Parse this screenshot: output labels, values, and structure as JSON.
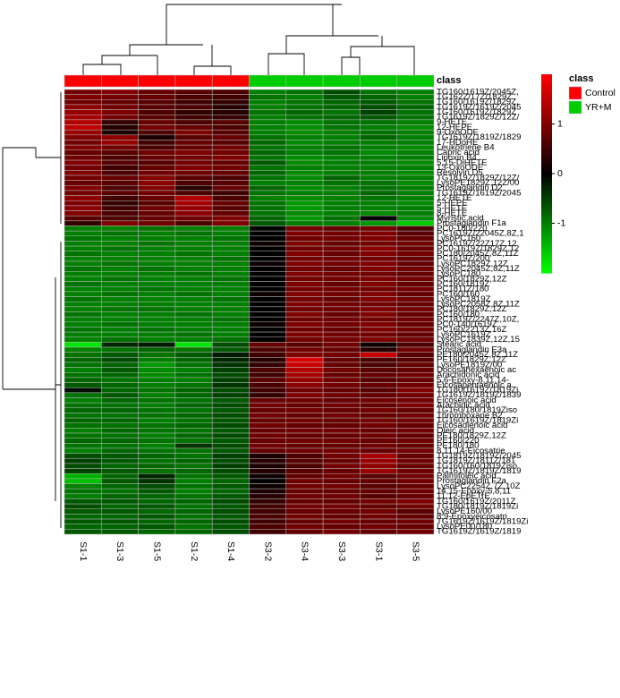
{
  "chart_data": {
    "type": "heatmap",
    "class_header": "class",
    "legend_title": "class",
    "classes": [
      {
        "name": "Control",
        "color": "#ff0000"
      },
      {
        "name": "YR+M",
        "color": "#00cc00"
      }
    ],
    "columns": [
      "S1-1",
      "S1-3",
      "S1-5",
      "S1-2",
      "S1-4",
      "S3-2",
      "S3-4",
      "S3-3",
      "S3-1",
      "S3-5"
    ],
    "column_classes": [
      0,
      0,
      0,
      0,
      0,
      1,
      1,
      1,
      1,
      1
    ],
    "clim": [
      -2,
      2
    ],
    "cticks": [
      -1,
      0,
      1
    ],
    "color_low": "#00ff00",
    "color_mid": "#000000",
    "color_high": "#ff0000",
    "rows": [
      "TG160/1619Z/2045Z,",
      "TG162Z/17Z/1829Z",
      "TG160/1619Z/1829Z,",
      "TG1619Z/1619Z/2045",
      "TG160/1619Z/1829Z",
      "TG1619Z/1829Z/12Z/",
      "9-HETE",
      "12-HEPE",
      "9-OxoODE",
      "TG1619Z/1819Z/1829",
      "17-HDoHE",
      "Leukotriene B4",
      "Capric acid",
      "Lipoxin B4",
      "5,15-DiHETE",
      "13-OxoODE",
      "Resolvin D5",
      "TG1819Z/1829Z/12Z/",
      "LysoPE1829Z,12Z/00",
      "Prostaglandin D2",
      "TG1619Z/1619Z/2045",
      "12-HETE",
      "5-HEPE",
      "5-HETE",
      "8-HETE",
      "Myristic acid",
      "Prostaglandin F1a",
      "PC0-180/220",
      "PC1619Z/22045Z,8Z,1",
      "LysoPC160",
      "PC1619Z/22Z17Z,12",
      "PC0-1619Z/1829Z,12",
      "PC180/2045Z,8Z,11Z",
      "PC1619Z/200",
      "LysoPC1829Z,12Z",
      "LysoPC2045Z,8Z,11Z",
      "LysoPC180",
      "PC160/1829Z,12Z",
      "PC160/1819Z",
      "PC1811Z/180",
      "PC160/160",
      "LysoPC1819Z",
      "LysoPC2058Z,8Z,11Z",
      "PC180/1829Z,12Z",
      "PC160/180",
      "PC1819Z/2247Z,10Z,",
      "PC0-140/1619Z",
      "PC160/2213Z,16Z",
      "LysoPC1619Z",
      "LysoPC1839Z,12Z,15",
      "Stearic acid",
      "Prostaglandin E3a",
      "PE180/2045Z,8Z,11Z",
      "PE160/1829Z,12Z",
      "LysoPE1819Z/00",
      "Docosahexaenoic ac",
      "Arachidonic acid",
      "5,6-Epoxy-8,11,14-",
      "Eicosapentaenoic a",
      "TG180/1619Z/1819Zi",
      "TG1619Z/1819Z/1839",
      "Eicosenoic acid",
      "Arachidic acid",
      "TG160/180/1819Ziso",
      "Thromboxane B2",
      "TG160/1619Z/1819Zi",
      "Eicosadienoic acid",
      "Oleic acid",
      "PE180/1829Z,12Z",
      "PE160/220",
      "PE180/180",
      "8,11,14-Eicosatrie",
      "TG1819Z/1819Z/2045",
      "TG1819Z/1811Z/181",
      "TG160/160/1819Ziso",
      "TG1619Z/1819Z/1819",
      "Palmitoleic acid",
      "Prostaglandin F2a",
      "LysoPC2254Z,7Z,10Z",
      "14,15-Epoxy-5,8,11",
      "11,12-EpETrE",
      "TG160/1619Z/2011Z",
      "TG180/1819Z/1819Zi",
      "LysoPE160/00",
      "8,9-Epoxyeicosatri",
      "TG1619Z/1619Z/1819Zi",
      "LysoPE00/180",
      "TG1619Z/1619Z/1819"
    ],
    "values": [
      [
        0.9,
        1.0,
        0.8,
        0.7,
        0.6,
        -1.0,
        -0.9,
        -0.6,
        -0.9,
        -1.0
      ],
      [
        1.0,
        0.9,
        0.8,
        0.6,
        0.5,
        -0.9,
        -1.0,
        -0.7,
        -0.8,
        -1.0
      ],
      [
        0.9,
        0.8,
        0.7,
        0.5,
        0.4,
        -1.0,
        -0.9,
        -0.8,
        -0.7,
        -0.9
      ],
      [
        1.1,
        0.9,
        0.7,
        0.6,
        0.3,
        -1.0,
        -0.9,
        -0.8,
        -0.6,
        -0.8
      ],
      [
        1.2,
        1.0,
        0.6,
        0.4,
        0.3,
        -0.9,
        -0.8,
        -0.9,
        -0.5,
        -0.9
      ],
      [
        1.3,
        0.9,
        0.7,
        0.5,
        0.4,
        -1.0,
        -0.9,
        -0.8,
        -0.7,
        -0.9
      ],
      [
        1.4,
        0.4,
        0.8,
        0.6,
        0.7,
        -1.0,
        -1.1,
        -0.9,
        -0.9,
        -1.0
      ],
      [
        1.5,
        0.3,
        0.9,
        0.8,
        0.6,
        -1.0,
        -1.1,
        -0.9,
        -1.0,
        -1.1
      ],
      [
        1.2,
        0.2,
        0.6,
        1.0,
        0.7,
        -1.0,
        -1.1,
        -1.0,
        -0.9,
        -1.0
      ],
      [
        1.0,
        1.1,
        0.2,
        0.7,
        0.8,
        -0.9,
        -1.0,
        -1.0,
        -0.8,
        -1.0
      ],
      [
        0.9,
        1.2,
        0.5,
        0.8,
        0.7,
        -0.8,
        -1.1,
        -1.0,
        -1.0,
        -1.0
      ],
      [
        1.0,
        0.9,
        0.6,
        0.8,
        0.9,
        -0.9,
        -1.0,
        -0.9,
        -1.0,
        -1.1
      ],
      [
        0.8,
        0.7,
        0.9,
        1.0,
        0.9,
        -0.8,
        -1.0,
        -0.9,
        -1.1,
        -1.0
      ],
      [
        0.9,
        0.6,
        0.8,
        0.9,
        1.0,
        -0.9,
        -1.1,
        -1.0,
        -1.0,
        -1.0
      ],
      [
        1.0,
        0.7,
        0.7,
        0.9,
        0.8,
        -0.7,
        -1.1,
        -1.0,
        -1.0,
        -1.1
      ],
      [
        0.9,
        0.5,
        0.8,
        1.0,
        0.9,
        -0.9,
        -1.0,
        -1.0,
        -1.0,
        -1.0
      ],
      [
        1.0,
        0.6,
        0.9,
        0.9,
        0.8,
        -0.8,
        -1.1,
        -1.0,
        -1.0,
        -1.1
      ],
      [
        0.9,
        0.8,
        1.0,
        0.7,
        0.6,
        -0.9,
        -1.1,
        -0.8,
        -1.0,
        -1.0
      ],
      [
        0.8,
        0.7,
        1.1,
        0.6,
        0.7,
        -1.0,
        -1.0,
        -0.9,
        -0.9,
        -1.1
      ],
      [
        1.0,
        0.6,
        1.0,
        0.3,
        0.8,
        -0.8,
        -1.1,
        -1.0,
        -0.9,
        -1.0
      ],
      [
        0.9,
        0.7,
        0.9,
        0.6,
        0.5,
        -0.9,
        -1.0,
        -1.0,
        -0.8,
        -1.0
      ],
      [
        1.1,
        0.5,
        0.8,
        1.4,
        0.6,
        -1.0,
        -1.1,
        -1.0,
        -0.9,
        -1.0
      ],
      [
        1.0,
        0.4,
        0.7,
        1.3,
        0.8,
        -0.9,
        -1.2,
        -1.0,
        -1.0,
        -1.1
      ],
      [
        1.1,
        0.5,
        0.9,
        1.2,
        0.7,
        -0.9,
        -1.2,
        -1.0,
        -1.0,
        -1.0
      ],
      [
        1.0,
        0.6,
        0.8,
        1.1,
        0.8,
        -0.9,
        -1.1,
        -1.0,
        -1.1,
        -1.0
      ],
      [
        0.7,
        0.6,
        0.8,
        0.9,
        1.0,
        -0.8,
        -1.2,
        -0.9,
        0.0,
        -1.1
      ],
      [
        0.4,
        1.0,
        0.9,
        0.6,
        1.0,
        -0.7,
        -1.0,
        -1.0,
        -1.2,
        -1.6
      ],
      [
        -1.0,
        -1.0,
        -0.9,
        -1.0,
        -1.0,
        0.0,
        0.9,
        0.8,
        0.9,
        0.6
      ],
      [
        -1.0,
        -0.9,
        -1.0,
        -0.9,
        -1.0,
        0.0,
        1.0,
        0.9,
        1.0,
        0.7
      ],
      [
        -0.9,
        -1.0,
        -1.0,
        -1.0,
        -0.9,
        0.0,
        0.9,
        0.9,
        1.0,
        0.8
      ],
      [
        -1.0,
        -1.0,
        -0.9,
        -1.0,
        -1.0,
        0.1,
        1.0,
        0.8,
        0.9,
        0.9
      ],
      [
        -1.0,
        -0.9,
        -1.0,
        -1.0,
        -1.0,
        0.0,
        0.9,
        0.9,
        1.1,
        0.8
      ],
      [
        -0.9,
        -1.0,
        -1.0,
        -0.9,
        -1.0,
        0.0,
        1.0,
        0.8,
        1.0,
        0.9
      ],
      [
        -1.0,
        -1.0,
        -1.0,
        -1.0,
        -0.9,
        0.0,
        0.9,
        0.9,
        0.9,
        0.8
      ],
      [
        -1.0,
        -0.9,
        -1.0,
        -1.0,
        -1.0,
        0.1,
        1.0,
        0.9,
        1.0,
        0.8
      ],
      [
        -0.9,
        -1.0,
        -0.9,
        -1.0,
        -1.0,
        0.0,
        0.9,
        0.8,
        1.0,
        0.9
      ],
      [
        -1.0,
        -1.0,
        -1.0,
        -0.9,
        -1.0,
        0.0,
        1.0,
        0.9,
        0.9,
        0.8
      ],
      [
        -1.0,
        -0.9,
        -1.0,
        -1.0,
        -0.9,
        0.0,
        0.9,
        0.9,
        1.0,
        0.9
      ],
      [
        -0.9,
        -1.0,
        -1.0,
        -1.0,
        -1.0,
        0.0,
        1.0,
        0.8,
        1.0,
        0.8
      ],
      [
        -1.0,
        -1.0,
        -0.9,
        -1.0,
        -1.0,
        0.0,
        0.9,
        0.9,
        0.9,
        0.9
      ],
      [
        -1.0,
        -0.9,
        -1.0,
        -0.9,
        -1.0,
        0.1,
        1.0,
        0.9,
        1.0,
        0.8
      ],
      [
        -0.9,
        -1.0,
        -1.0,
        -1.0,
        -0.9,
        0.0,
        0.9,
        0.8,
        1.0,
        0.9
      ],
      [
        -1.0,
        -1.0,
        -1.0,
        -1.0,
        -1.0,
        0.0,
        1.0,
        0.9,
        0.9,
        0.8
      ],
      [
        -1.0,
        -0.9,
        -0.9,
        -1.0,
        -1.0,
        0.0,
        0.9,
        0.9,
        1.0,
        0.9
      ],
      [
        -0.9,
        -1.0,
        -1.0,
        -0.9,
        -1.0,
        0.0,
        1.0,
        0.8,
        1.0,
        0.8
      ],
      [
        -1.0,
        -1.0,
        -1.0,
        -1.0,
        -0.9,
        0.0,
        0.9,
        0.9,
        0.9,
        0.9
      ],
      [
        -1.0,
        -0.9,
        -1.0,
        -1.0,
        -1.0,
        0.1,
        1.0,
        0.9,
        1.0,
        0.8
      ],
      [
        -0.9,
        -1.0,
        -0.9,
        -1.0,
        -1.0,
        0.0,
        0.9,
        0.8,
        1.0,
        0.9
      ],
      [
        -1.0,
        -1.0,
        -1.0,
        -0.9,
        -1.0,
        0.0,
        1.0,
        0.9,
        0.9,
        0.8
      ],
      [
        -1.0,
        -0.9,
        -1.0,
        -1.0,
        -0.9,
        0.0,
        0.9,
        0.9,
        1.0,
        0.9
      ],
      [
        -1.8,
        -0.3,
        -0.2,
        -1.8,
        -0.6,
        0.8,
        0.7,
        0.9,
        0.1,
        0.6
      ],
      [
        -1.0,
        -0.9,
        -0.8,
        -0.9,
        -0.7,
        0.6,
        0.9,
        0.8,
        0.3,
        0.9
      ],
      [
        -0.9,
        -0.7,
        -0.9,
        -0.7,
        -0.2,
        0.5,
        1.0,
        0.9,
        1.6,
        0.7
      ],
      [
        -0.8,
        -0.6,
        -1.0,
        -0.8,
        -0.3,
        0.3,
        1.7,
        0.8,
        0.6,
        0.7
      ],
      [
        -0.9,
        -0.8,
        -1.2,
        -0.9,
        -0.4,
        0.4,
        1.6,
        0.8,
        0.6,
        0.8
      ],
      [
        -1.0,
        -0.7,
        -1.1,
        -1.0,
        -0.5,
        0.6,
        1.4,
        0.9,
        0.7,
        0.8
      ],
      [
        -0.9,
        -0.8,
        -1.1,
        -0.9,
        -0.6,
        0.5,
        1.3,
        0.8,
        0.8,
        0.9
      ],
      [
        -0.8,
        -0.9,
        -1.0,
        -1.0,
        -0.5,
        0.7,
        1.2,
        0.9,
        0.7,
        0.8
      ],
      [
        -0.7,
        -0.8,
        -1.0,
        -0.9,
        -0.4,
        0.6,
        1.1,
        0.9,
        0.8,
        0.9
      ],
      [
        -0.1,
        -0.8,
        -0.9,
        -0.8,
        -0.6,
        0.5,
        0.9,
        0.8,
        0.7,
        1.0
      ],
      [
        -0.9,
        -0.7,
        -1.0,
        -0.8,
        -0.5,
        0.4,
        1.0,
        0.9,
        0.8,
        0.9
      ],
      [
        -1.0,
        -0.8,
        -0.9,
        -0.9,
        -0.7,
        0.8,
        0.9,
        0.8,
        0.9,
        0.9
      ],
      [
        -0.9,
        -0.9,
        -1.0,
        -0.8,
        -0.6,
        0.9,
        0.8,
        0.9,
        0.8,
        1.0
      ],
      [
        -0.8,
        -0.8,
        -0.9,
        -0.9,
        -0.7,
        0.8,
        0.9,
        0.8,
        0.9,
        0.8
      ],
      [
        -0.9,
        -0.9,
        -0.9,
        -0.8,
        -0.6,
        0.9,
        0.8,
        0.9,
        0.8,
        0.9
      ],
      [
        -0.8,
        -0.8,
        -1.0,
        -0.9,
        -0.7,
        0.8,
        0.9,
        0.8,
        0.9,
        0.9
      ],
      [
        -0.9,
        -0.9,
        -0.9,
        -0.8,
        -0.6,
        0.9,
        0.8,
        0.8,
        0.9,
        0.8
      ],
      [
        -1.0,
        -0.8,
        -0.9,
        -0.9,
        -0.7,
        0.8,
        0.9,
        0.9,
        0.8,
        0.9
      ],
      [
        -0.9,
        -0.9,
        -1.0,
        -0.8,
        -0.6,
        0.9,
        0.8,
        0.8,
        0.9,
        0.8
      ],
      [
        -0.8,
        -0.8,
        -0.9,
        -0.9,
        -0.7,
        0.8,
        0.9,
        0.9,
        0.8,
        0.9
      ],
      [
        -0.9,
        -0.9,
        -1.0,
        -0.4,
        -0.6,
        0.9,
        0.8,
        0.8,
        0.9,
        0.8
      ],
      [
        -1.0,
        -0.8,
        -0.9,
        -0.9,
        -0.7,
        0.8,
        0.9,
        0.9,
        0.8,
        0.9
      ],
      [
        -0.6,
        -0.7,
        -0.8,
        -0.9,
        -0.5,
        0.2,
        0.6,
        0.9,
        1.3,
        0.8
      ],
      [
        -0.5,
        -0.7,
        -0.9,
        -0.8,
        -0.6,
        0.3,
        0.7,
        0.8,
        1.2,
        0.9
      ],
      [
        -0.6,
        -0.8,
        -0.8,
        -0.9,
        -0.5,
        0.2,
        0.6,
        0.9,
        1.1,
        0.8
      ],
      [
        -0.5,
        -0.7,
        -0.9,
        -0.8,
        -0.6,
        0.3,
        0.7,
        0.8,
        1.2,
        0.9
      ],
      [
        -1.4,
        -0.8,
        -0.3,
        -0.9,
        -0.7,
        0.1,
        0.8,
        0.9,
        0.7,
        0.9
      ],
      [
        -1.5,
        -0.7,
        -0.4,
        -1.0,
        -0.8,
        0.0,
        0.9,
        0.8,
        0.8,
        0.9
      ],
      [
        -1.0,
        -0.8,
        -0.6,
        -0.9,
        -0.7,
        0.1,
        0.9,
        0.9,
        0.7,
        0.8
      ],
      [
        -0.9,
        -0.9,
        -0.7,
        -1.0,
        -0.8,
        0.2,
        0.8,
        0.8,
        0.8,
        0.9
      ],
      [
        -1.0,
        -0.8,
        -0.8,
        -0.9,
        -0.7,
        0.3,
        0.9,
        0.9,
        0.7,
        0.8
      ],
      [
        -0.7,
        -0.7,
        -0.8,
        -0.8,
        -0.6,
        0.4,
        0.8,
        0.8,
        0.9,
        1.0
      ],
      [
        -0.6,
        -0.8,
        -0.7,
        -0.9,
        -0.7,
        0.5,
        0.9,
        0.9,
        0.8,
        0.9
      ],
      [
        -0.7,
        -0.7,
        -0.8,
        -0.8,
        -0.6,
        0.5,
        0.8,
        0.8,
        0.9,
        0.7
      ],
      [
        -0.8,
        -0.8,
        -0.7,
        -0.9,
        -0.7,
        0.6,
        0.9,
        0.8,
        0.9,
        0.8
      ],
      [
        -0.7,
        -0.7,
        -0.8,
        -0.8,
        -0.6,
        0.5,
        0.8,
        0.9,
        0.8,
        0.9
      ],
      [
        -0.8,
        -0.8,
        -0.7,
        -0.9,
        -0.7,
        0.6,
        0.9,
        0.8,
        0.9,
        0.8
      ],
      [
        -0.7,
        -0.7,
        -0.8,
        -0.8,
        -0.6,
        0.5,
        0.8,
        0.9,
        0.8,
        0.9
      ]
    ]
  }
}
